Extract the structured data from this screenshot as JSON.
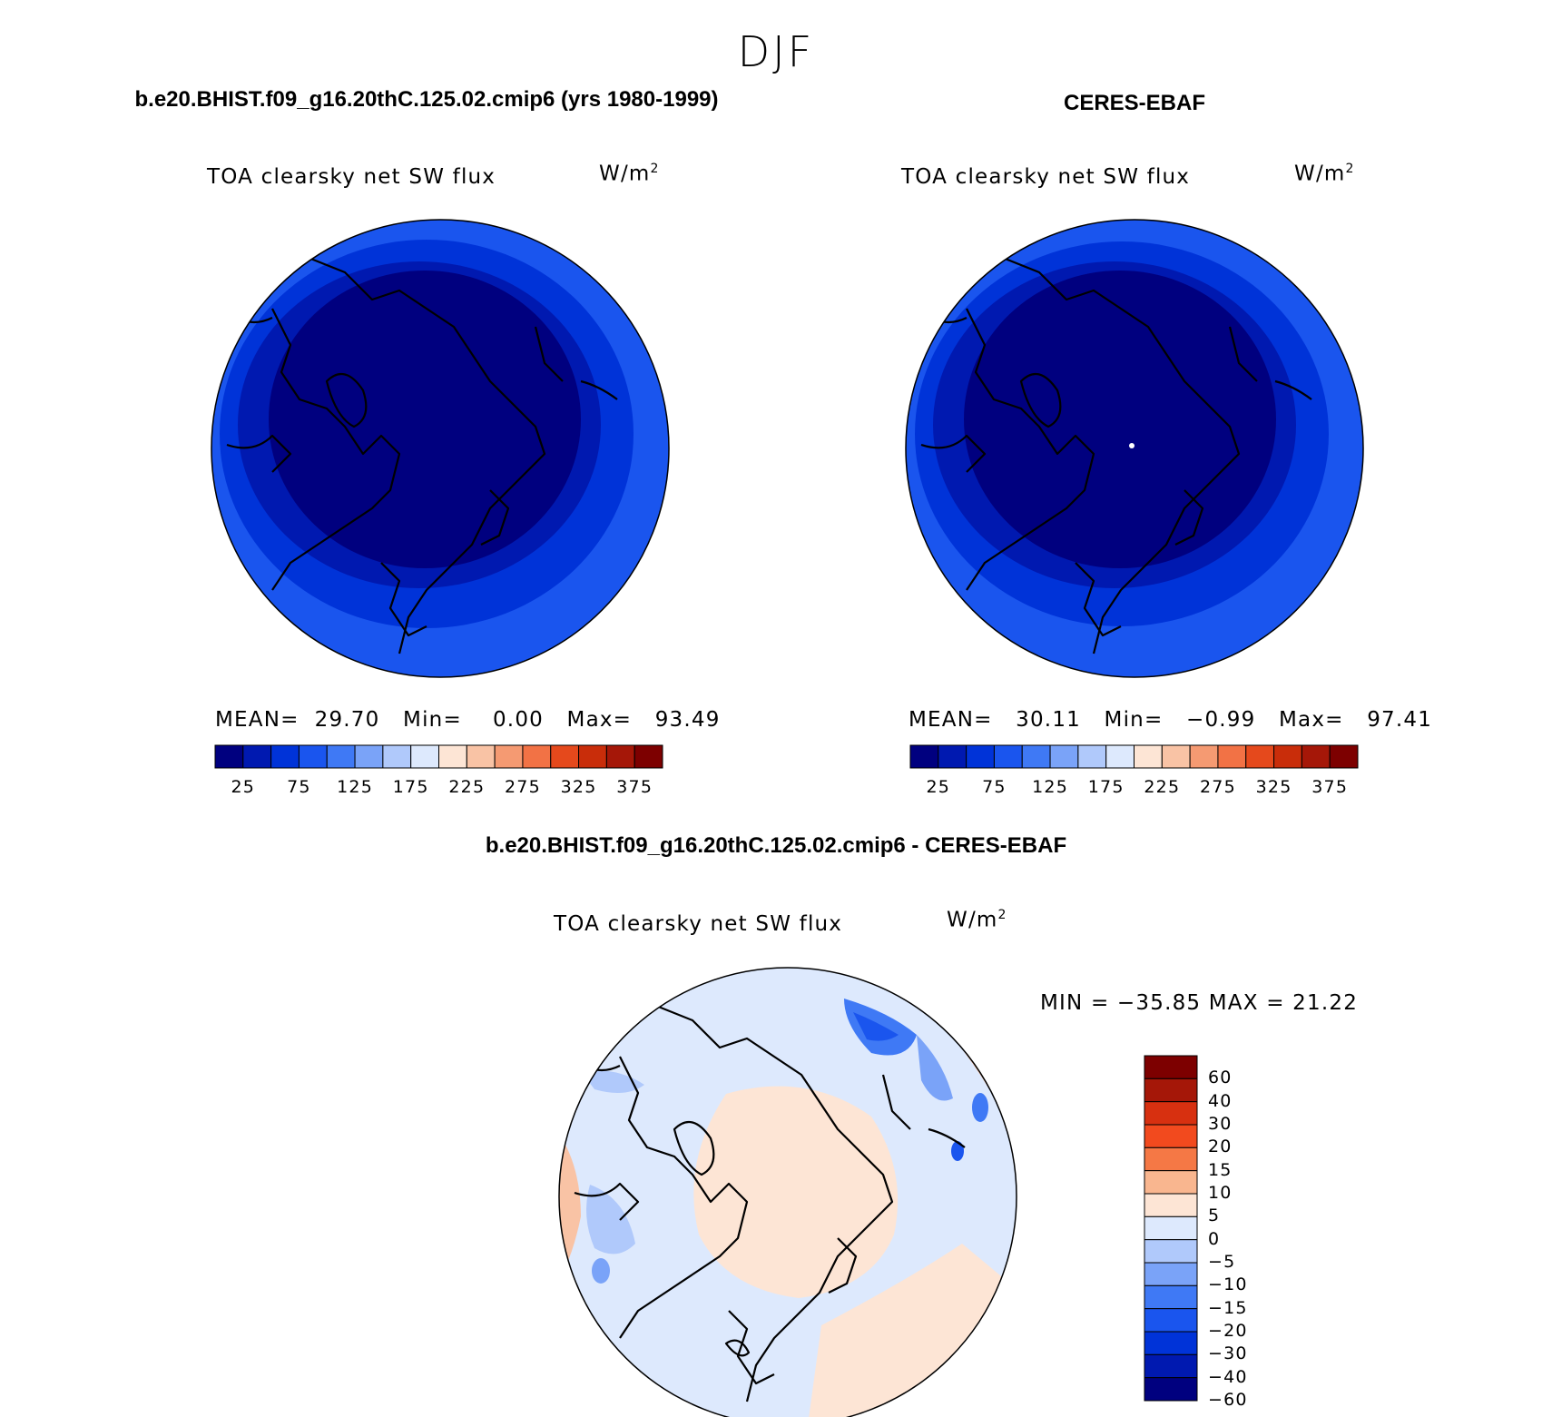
{
  "figure": {
    "season": "DJF",
    "units_base": "W/m",
    "units_exp": "2"
  },
  "panels": {
    "model": {
      "case_title": "b.e20.BHIST.f09_g16.20thC.125.02.cmip6 (yrs 1980-1999)",
      "variable": "TOA clearsky net SW flux",
      "stats": {
        "mean_label": "MEAN=",
        "mean": "29.70",
        "min_label": "Min=",
        "min": "0.00",
        "max_label": "Max=",
        "max": "93.49"
      }
    },
    "obs": {
      "case_title": "CERES-EBAF",
      "variable": "TOA clearsky net SW flux",
      "stats": {
        "mean_label": "MEAN=",
        "mean": "30.11",
        "min_label": "Min=",
        "min": "−0.99",
        "max_label": "Max=",
        "max": "97.41"
      }
    },
    "diff": {
      "case_title": "b.e20.BHIST.f09_g16.20thC.125.02.cmip6 - CERES-EBAF",
      "variable": "TOA clearsky net SW flux",
      "minmax": "MIN = −35.85 MAX =  21.22"
    }
  },
  "chart_data": [
    {
      "type": "heatmap",
      "projection": "north polar stereographic",
      "panel": "model",
      "fill_levels": [
        25,
        50,
        75
      ],
      "colorbar": {
        "orientation": "horizontal",
        "colors": [
          "#00007f",
          "#0019b0",
          "#0033d8",
          "#1a55ee",
          "#3f79f5",
          "#7aa3f8",
          "#b0c9fb",
          "#dde9fd",
          "#fde5d5",
          "#f9c3a5",
          "#f59a72",
          "#f27245",
          "#e5491c",
          "#c92d0a",
          "#a51708",
          "#7d0000"
        ],
        "tick_labels": [
          "25",
          "75",
          "125",
          "175",
          "225",
          "275",
          "325",
          "375"
        ]
      }
    },
    {
      "type": "heatmap",
      "projection": "north polar stereographic",
      "panel": "obs",
      "fill_levels": [
        25,
        50,
        75
      ],
      "colorbar": {
        "orientation": "horizontal",
        "colors": [
          "#00007f",
          "#0019b0",
          "#0033d8",
          "#1a55ee",
          "#3f79f5",
          "#7aa3f8",
          "#b0c9fb",
          "#dde9fd",
          "#fde5d5",
          "#f9c3a5",
          "#f59a72",
          "#f27245",
          "#e5491c",
          "#c92d0a",
          "#a51708",
          "#7d0000"
        ],
        "tick_labels": [
          "25",
          "75",
          "125",
          "175",
          "225",
          "275",
          "325",
          "375"
        ]
      }
    },
    {
      "type": "heatmap",
      "projection": "north polar stereographic",
      "panel": "diff",
      "colorbar": {
        "orientation": "vertical",
        "colors_top_to_bottom": [
          "#7d0000",
          "#a51708",
          "#d73010",
          "#f24a1e",
          "#f57845",
          "#f9b68f",
          "#fde5d5",
          "#dde9fd",
          "#b0c9fb",
          "#7aa3f8",
          "#3f79f5",
          "#1a55ee",
          "#0033d8",
          "#0019b0",
          "#00007f"
        ],
        "tick_labels": [
          "60",
          "40",
          "30",
          "20",
          "15",
          "10",
          "5",
          "0",
          "−5",
          "−10",
          "−15",
          "−20",
          "−30",
          "−40",
          "−60"
        ]
      }
    }
  ]
}
